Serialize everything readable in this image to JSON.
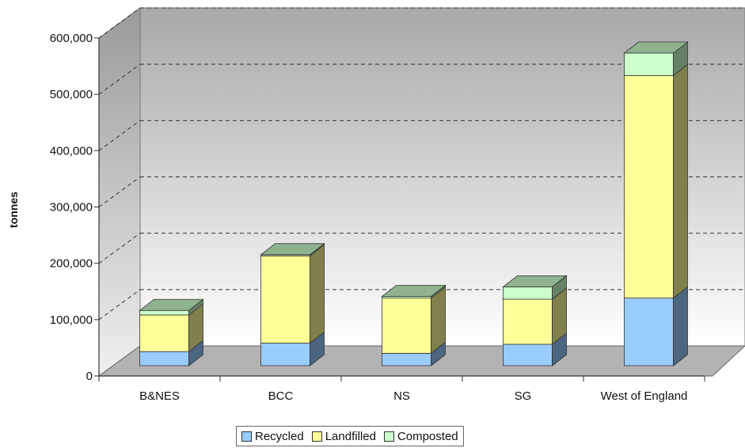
{
  "chart_data": {
    "type": "bar",
    "stacked": true,
    "three_d": true,
    "title": "",
    "xlabel": "",
    "ylabel": "tonnes",
    "ylim": [
      0,
      600000
    ],
    "yticks": [
      0,
      100000,
      200000,
      300000,
      400000,
      500000,
      600000
    ],
    "ytick_labels": [
      "0",
      "100,000",
      "200,000",
      "300,000",
      "400,000",
      "500,000",
      "600,000"
    ],
    "categories": [
      "B&NES",
      "BCC",
      "NS",
      "SG",
      "West of England"
    ],
    "series": [
      {
        "name": "Recycled",
        "color": "#99ccff",
        "values": [
          25000,
          40000,
          22000,
          38000,
          120000
        ]
      },
      {
        "name": "Landfilled",
        "color": "#ffff99",
        "values": [
          65000,
          155000,
          98000,
          80000,
          395000
        ]
      },
      {
        "name": "Composted",
        "color": "#ccffcc",
        "values": [
          8000,
          2000,
          3000,
          22000,
          40000
        ]
      }
    ],
    "grid": true,
    "legend_position": "bottom"
  }
}
